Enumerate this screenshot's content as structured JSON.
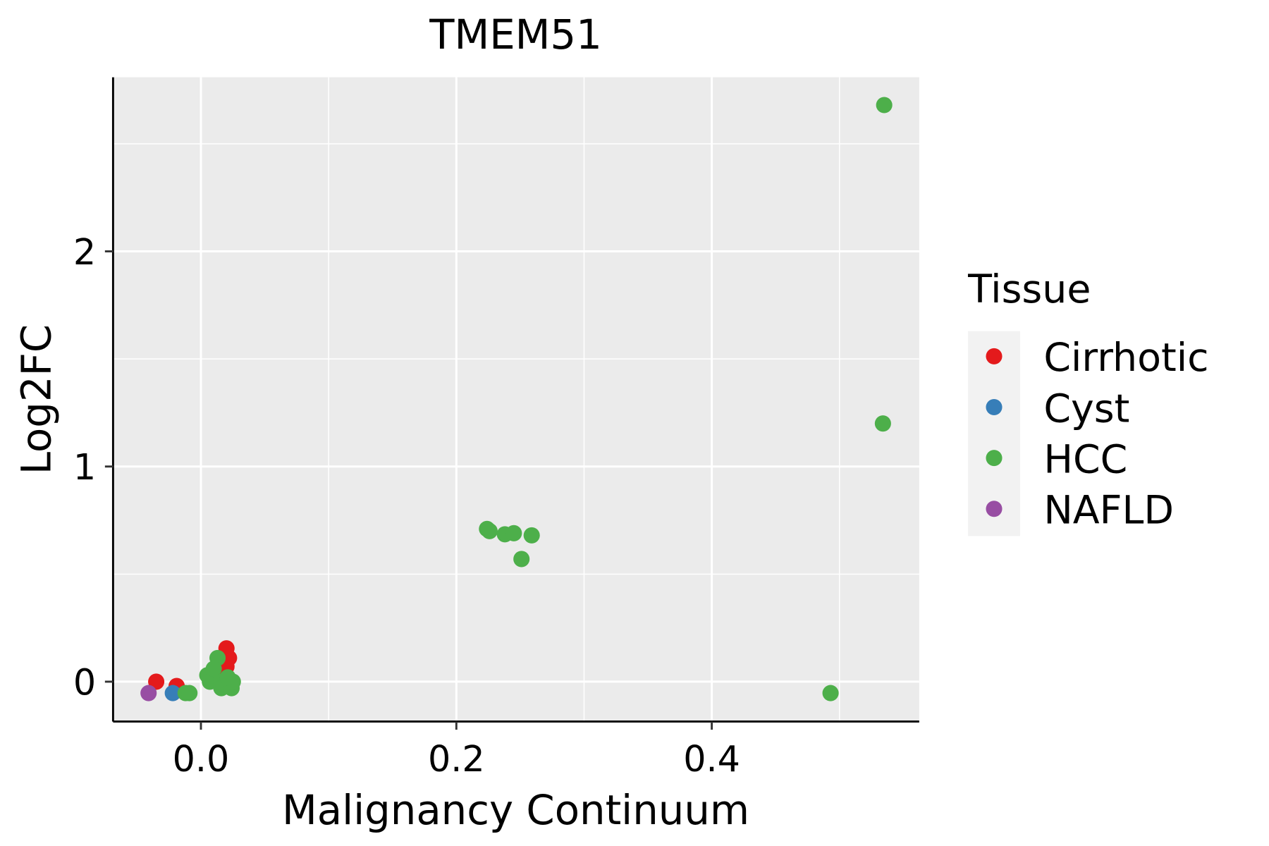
{
  "chart_data": {
    "type": "scatter",
    "title": "TMEM51",
    "xlabel": "Malignancy Continuum",
    "ylabel": "Log2FC",
    "xlim": [
      -0.07,
      0.56
    ],
    "ylim": [
      -0.18,
      2.82
    ],
    "xticks": [
      {
        "v": 0.0,
        "label": "0.0"
      },
      {
        "v": 0.2,
        "label": "0.2"
      },
      {
        "v": 0.4,
        "label": "0.4"
      }
    ],
    "yticks": [
      {
        "v": 0,
        "label": "0"
      },
      {
        "v": 1,
        "label": "1"
      },
      {
        "v": 2,
        "label": "2"
      }
    ],
    "grid": true,
    "legend": {
      "title": "Tissue",
      "position": "right"
    },
    "series": [
      {
        "name": "Cirrhotic",
        "color": "#E41A1C",
        "points": [
          [
            -0.035,
            0.0
          ],
          [
            -0.019,
            -0.02
          ],
          [
            0.02,
            0.155
          ],
          [
            0.022,
            0.11
          ],
          [
            0.02,
            0.07
          ],
          [
            0.018,
            0.03
          ]
        ]
      },
      {
        "name": "Cyst",
        "color": "#377EB8",
        "points": [
          [
            -0.022,
            -0.053
          ]
        ]
      },
      {
        "name": "HCC",
        "color": "#4DAF4A",
        "points": [
          [
            -0.012,
            -0.053
          ],
          [
            -0.009,
            -0.053
          ],
          [
            0.013,
            0.11
          ],
          [
            0.005,
            0.03
          ],
          [
            0.007,
            0.0
          ],
          [
            0.01,
            0.06
          ],
          [
            0.016,
            0.0
          ],
          [
            0.016,
            -0.03
          ],
          [
            0.024,
            -0.03
          ],
          [
            0.025,
            0.0
          ],
          [
            0.021,
            0.02
          ],
          [
            0.224,
            0.71
          ],
          [
            0.226,
            0.7
          ],
          [
            0.238,
            0.685
          ],
          [
            0.245,
            0.69
          ],
          [
            0.259,
            0.68
          ],
          [
            0.251,
            0.57
          ],
          [
            0.535,
            2.68
          ],
          [
            0.534,
            1.2
          ],
          [
            0.493,
            -0.053
          ]
        ]
      },
      {
        "name": "NAFLD",
        "color": "#984EA3",
        "points": [
          [
            -0.041,
            -0.053
          ]
        ]
      }
    ]
  }
}
